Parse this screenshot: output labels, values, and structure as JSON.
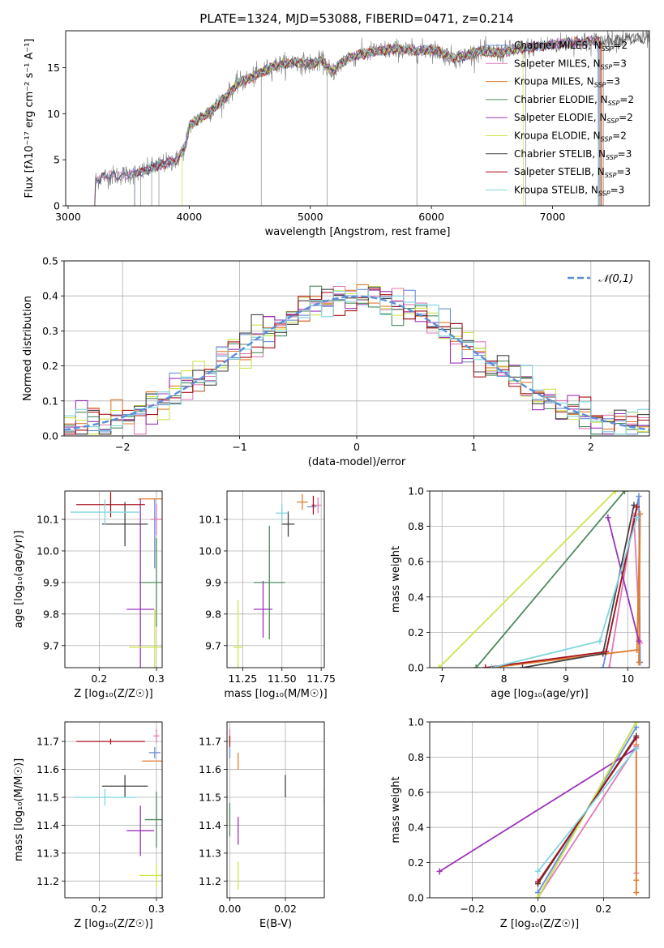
{
  "page_title": "PLATE=1324, MJD=53088, FIBERID=0471, z=0.214",
  "series_styles": [
    {
      "name": "Chabrier MILES",
      "nssp": "2",
      "color": "#6a8fd8"
    },
    {
      "name": "Salpeter MILES",
      "nssp": "3",
      "color": "#e07bb5"
    },
    {
      "name": "Kroupa MILES",
      "nssp": "3",
      "color": "#e07c2e"
    },
    {
      "name": "Chabrier ELODIE",
      "nssp": "2",
      "color": "#4f8b5e"
    },
    {
      "name": "Salpeter ELODIE",
      "nssp": "2",
      "color": "#9b34b8"
    },
    {
      "name": "Kroupa ELODIE",
      "nssp": "2",
      "color": "#cfe44b"
    },
    {
      "name": "Chabrier STELIB",
      "nssp": "3",
      "color": "#444444"
    },
    {
      "name": "Salpeter STELIB",
      "nssp": "3",
      "color": "#a8121c"
    },
    {
      "name": "Kroupa STELIB",
      "nssp": "3",
      "color": "#7fd6df"
    }
  ],
  "chart_data": [
    {
      "id": "spectrum",
      "type": "line",
      "xlabel": "wavelength [Angstrom, rest frame]",
      "ylabel": "Flux [fλ10⁻¹⁷ erg cm⁻² s⁻¹ A⁻¹]",
      "xlim": [
        2980,
        7800
      ],
      "ylim": [
        0,
        19
      ],
      "xticks": [
        3000,
        4000,
        5000,
        6000,
        7000
      ],
      "yticks": [
        0,
        5,
        10,
        15
      ],
      "legend": "upper right",
      "continuum": [
        [
          3220,
          0
        ],
        [
          3225,
          2.8
        ],
        [
          3300,
          3.2
        ],
        [
          3500,
          3.4
        ],
        [
          3600,
          3.6
        ],
        [
          3700,
          4.2
        ],
        [
          3800,
          4.6
        ],
        [
          3900,
          5.0
        ],
        [
          3970,
          6.5
        ],
        [
          4000,
          8.7
        ],
        [
          4100,
          9.6
        ],
        [
          4200,
          10.5
        ],
        [
          4300,
          11.8
        ],
        [
          4400,
          13.3
        ],
        [
          4500,
          13.8
        ],
        [
          4700,
          15.2
        ],
        [
          4860,
          15.6
        ],
        [
          5000,
          15.4
        ],
        [
          5100,
          15.7
        ],
        [
          5175,
          14.5
        ],
        [
          5300,
          16.0
        ],
        [
          5500,
          16.7
        ],
        [
          5700,
          17.0
        ],
        [
          5890,
          16.8
        ],
        [
          6000,
          17.0
        ],
        [
          6200,
          16.0
        ],
        [
          6400,
          16.8
        ],
        [
          6563,
          16.6
        ],
        [
          6700,
          17.0
        ],
        [
          6900,
          17.3
        ],
        [
          7100,
          17.7
        ],
        [
          7300,
          17.8
        ],
        [
          7500,
          18.0
        ],
        [
          7800,
          18.2
        ]
      ],
      "start_waves": [
        3220,
        3220,
        3550,
        3550,
        3550,
        3940,
        3220,
        3550,
        3550
      ],
      "end_waves": [
        7380,
        7380,
        7410,
        7390,
        7380,
        6760,
        7800,
        7400,
        7380
      ],
      "spikes": [
        [
          3600,
          0
        ],
        [
          3690,
          0
        ],
        [
          3750,
          0
        ],
        [
          4595,
          0
        ],
        [
          5140,
          0
        ],
        [
          5880,
          0
        ],
        [
          6780,
          0
        ],
        [
          7420,
          0
        ]
      ]
    },
    {
      "id": "residuals",
      "type": "histogram",
      "xlabel": "(data-model)/error",
      "ylabel": "Normed distribution",
      "xlim": [
        -2.5,
        2.5
      ],
      "ylim": [
        0,
        0.5
      ],
      "xticks": [
        -2,
        -1,
        0,
        1,
        2
      ],
      "yticks": [
        0.0,
        0.1,
        0.2,
        0.3,
        0.4,
        0.5
      ],
      "grid": true,
      "bin_width": 0.1,
      "reference_curve": {
        "label": "𝒩(0,1)",
        "mean": 0,
        "sigma": 1,
        "color": "#5a8fd8"
      },
      "legend": "upper right"
    },
    {
      "id": "age-vs-Z",
      "type": "scatter",
      "xlabel": "Z [log₁₀(Z/Z☉)]",
      "ylabel": "age  [log₁₀(age/yr)]",
      "xlim": [
        0.14,
        0.31
      ],
      "ylim": [
        9.63,
        10.19
      ],
      "xticks": [
        0.2,
        0.3
      ],
      "yticks": [
        9.7,
        9.8,
        9.9,
        10.0,
        10.1
      ],
      "points": [
        {
          "series": "Chabrier MILES",
          "x": 0.297,
          "y": 10.055,
          "xerr": 0.0,
          "yerr": 0.11
        },
        {
          "series": "Salpeter MILES",
          "x": 0.3,
          "y": 10.1,
          "xerr": 0.01,
          "yerr": 0.05
        },
        {
          "series": "Kroupa MILES",
          "x": 0.295,
          "y": 10.165,
          "xerr": 0.027,
          "yerr": 0.0
        },
        {
          "series": "Chabrier ELODIE",
          "x": 0.3,
          "y": 9.9,
          "xerr": 0.03,
          "yerr": 0.14
        },
        {
          "series": "Salpeter ELODIE",
          "x": 0.272,
          "y": 9.815,
          "xerr": 0.024,
          "yerr": 0.35
        },
        {
          "series": "Kroupa ELODIE",
          "x": 0.297,
          "y": 9.695,
          "xerr": 0.045,
          "yerr": 0.12
        },
        {
          "series": "Chabrier STELIB",
          "x": 0.245,
          "y": 10.085,
          "xerr": 0.04,
          "yerr": 0.07
        },
        {
          "series": "Salpeter STELIB",
          "x": 0.22,
          "y": 10.147,
          "xerr": 0.06,
          "yerr": 0.04
        },
        {
          "series": "Kroupa STELIB",
          "x": 0.21,
          "y": 10.123,
          "xerr": 0.06,
          "yerr": 0.04
        }
      ]
    },
    {
      "id": "age-vs-mass",
      "type": "scatter",
      "xlabel": "mass [log₁₀(M/M☉)]",
      "ylabel": "",
      "xlim": [
        11.15,
        11.77
      ],
      "ylim": [
        9.63,
        10.19
      ],
      "xticks": [
        11.25,
        11.5,
        11.75
      ],
      "yticks": [
        9.7,
        9.8,
        9.9,
        10.0,
        10.1
      ],
      "points": [
        {
          "series": "Chabrier MILES",
          "x": 11.69,
          "y": 10.14,
          "xerr": 0.03,
          "yerr": 0.0
        },
        {
          "series": "Salpeter MILES",
          "x": 11.73,
          "y": 10.145,
          "xerr": 0.02,
          "yerr": 0.025
        },
        {
          "series": "Kroupa MILES",
          "x": 11.63,
          "y": 10.155,
          "xerr": 0.035,
          "yerr": 0.025
        },
        {
          "series": "Chabrier ELODIE",
          "x": 11.42,
          "y": 9.9,
          "xerr": 0.1,
          "yerr": 0.18
        },
        {
          "series": "Salpeter ELODIE",
          "x": 11.38,
          "y": 9.815,
          "xerr": 0.06,
          "yerr": 0.09
        },
        {
          "series": "Kroupa ELODIE",
          "x": 11.22,
          "y": 9.695,
          "xerr": 0.03,
          "yerr": 0.15
        },
        {
          "series": "Chabrier STELIB",
          "x": 11.54,
          "y": 10.085,
          "xerr": 0.04,
          "yerr": 0.04
        },
        {
          "series": "Salpeter STELIB",
          "x": 11.7,
          "y": 10.145,
          "xerr": 0.01,
          "yerr": 0.03
        },
        {
          "series": "Kroupa STELIB",
          "x": 11.5,
          "y": 10.12,
          "xerr": 0.04,
          "yerr": 0.03
        }
      ]
    },
    {
      "id": "weight-vs-age",
      "type": "line",
      "xlabel": "age  [log₁₀(age/yr)]",
      "ylabel": "mass weight",
      "xlim": [
        6.8,
        10.35
      ],
      "ylim": [
        0,
        1.0
      ],
      "xticks": [
        7,
        8,
        9,
        10
      ],
      "yticks": [
        0.0,
        0.2,
        0.4,
        0.6,
        0.8,
        1.0
      ],
      "series": [
        {
          "series": "Chabrier MILES",
          "points": [
            [
              9.6,
              0.0
            ],
            [
              10.18,
              0.97
            ],
            [
              10.2,
              0.03
            ]
          ]
        },
        {
          "series": "Salpeter MILES",
          "points": [
            [
              9.7,
              0.0
            ],
            [
              10.1,
              0.86
            ],
            [
              10.2,
              0.14
            ]
          ]
        },
        {
          "series": "Kroupa MILES",
          "points": [
            [
              7.8,
              0.0
            ],
            [
              10.15,
              0.1
            ],
            [
              10.2,
              0.87
            ],
            [
              10.18,
              0.03
            ]
          ]
        },
        {
          "series": "Chabrier ELODIE",
          "points": [
            [
              7.55,
              0.0
            ],
            [
              9.95,
              1.0
            ]
          ]
        },
        {
          "series": "Salpeter ELODIE",
          "points": [
            [
              9.68,
              0.85
            ],
            [
              10.18,
              0.15
            ]
          ]
        },
        {
          "series": "Kroupa ELODIE",
          "points": [
            [
              6.95,
              0.0
            ],
            [
              9.8,
              1.0
            ]
          ]
        },
        {
          "series": "Chabrier STELIB",
          "points": [
            [
              8.3,
              0.0
            ],
            [
              9.6,
              0.08
            ],
            [
              10.1,
              0.92
            ]
          ]
        },
        {
          "series": "Salpeter STELIB",
          "points": [
            [
              7.7,
              0.0
            ],
            [
              9.65,
              0.09
            ],
            [
              10.15,
              0.91
            ]
          ]
        },
        {
          "series": "Kroupa STELIB",
          "points": [
            [
              7.8,
              0.0
            ],
            [
              9.55,
              0.15
            ],
            [
              10.15,
              0.85
            ]
          ]
        }
      ]
    },
    {
      "id": "mass-vs-Z",
      "type": "scatter",
      "xlabel": "Z [log₁₀(Z/Z☉)]",
      "ylabel": "mass [log₁₀(M/M☉)]",
      "xlim": [
        0.14,
        0.31
      ],
      "ylim": [
        11.14,
        11.77
      ],
      "xticks": [
        0.2,
        0.3
      ],
      "yticks": [
        11.2,
        11.3,
        11.4,
        11.5,
        11.6,
        11.7
      ],
      "points": [
        {
          "series": "Chabrier MILES",
          "x": 0.297,
          "y": 11.66,
          "xerr": 0.01,
          "yerr": 0.02
        },
        {
          "series": "Salpeter MILES",
          "x": 0.3,
          "y": 11.72,
          "xerr": 0.005,
          "yerr": 0.025
        },
        {
          "series": "Kroupa MILES",
          "x": 0.3,
          "y": 11.63,
          "xerr": 0.025,
          "yerr": 0.0
        },
        {
          "series": "Chabrier ELODIE",
          "x": 0.3,
          "y": 11.42,
          "xerr": 0.02,
          "yerr": 0.1
        },
        {
          "series": "Salpeter ELODIE",
          "x": 0.272,
          "y": 11.38,
          "xerr": 0.024,
          "yerr": 0.09
        },
        {
          "series": "Kroupa ELODIE",
          "x": 0.3,
          "y": 11.22,
          "xerr": 0.03,
          "yerr": 0.04
        },
        {
          "series": "Chabrier STELIB",
          "x": 0.245,
          "y": 11.54,
          "xerr": 0.04,
          "yerr": 0.04
        },
        {
          "series": "Salpeter STELIB",
          "x": 0.22,
          "y": 11.7,
          "xerr": 0.06,
          "yerr": 0.01
        },
        {
          "series": "Kroupa STELIB",
          "x": 0.21,
          "y": 11.5,
          "xerr": 0.055,
          "yerr": 0.03
        }
      ]
    },
    {
      "id": "mass-vs-EBV",
      "type": "scatter",
      "xlabel": "E(B-V)",
      "ylabel": "",
      "xlim": [
        -0.001,
        0.034
      ],
      "ylim": [
        11.14,
        11.77
      ],
      "xticks": [
        0.0,
        0.02
      ],
      "yticks": [
        11.2,
        11.3,
        11.4,
        11.5,
        11.6,
        11.7
      ],
      "points": [
        {
          "series": "Chabrier MILES",
          "x": 0.0,
          "y": 11.66,
          "xerr": 0.0,
          "yerr": 0.02
        },
        {
          "series": "Salpeter MILES",
          "x": 0.0,
          "y": 11.72,
          "xerr": 0.0,
          "yerr": 0.025
        },
        {
          "series": "Kroupa MILES",
          "x": 0.003,
          "y": 11.63,
          "xerr": 0.0,
          "yerr": 0.03
        },
        {
          "series": "Chabrier ELODIE",
          "x": 0.0,
          "y": 11.42,
          "xerr": 0.0,
          "yerr": 0.06
        },
        {
          "series": "Salpeter ELODIE",
          "x": 0.003,
          "y": 11.38,
          "xerr": 0.0,
          "yerr": 0.05
        },
        {
          "series": "Kroupa ELODIE",
          "x": 0.003,
          "y": 11.22,
          "xerr": 0.0,
          "yerr": 0.05
        },
        {
          "series": "Chabrier STELIB",
          "x": 0.02,
          "y": 11.54,
          "xerr": 0.0,
          "yerr": 0.04
        },
        {
          "series": "Salpeter STELIB",
          "x": 0.0,
          "y": 11.7,
          "xerr": 0.0,
          "yerr": 0.02
        },
        {
          "series": "Kroupa STELIB",
          "x": 0.034,
          "y": 11.5,
          "xerr": 0.0,
          "yerr": 0.03
        }
      ]
    },
    {
      "id": "weight-vs-Z",
      "type": "line",
      "xlabel": "Z [log₁₀(Z/Z☉)]",
      "ylabel": "mass weight",
      "xlim": [
        -0.33,
        0.34
      ],
      "ylim": [
        0,
        1.0
      ],
      "xticks": [
        -0.2,
        0.0,
        0.2
      ],
      "yticks": [
        0.0,
        0.2,
        0.4,
        0.6,
        0.8,
        1.0
      ],
      "series": [
        {
          "series": "Chabrier MILES",
          "points": [
            [
              0.0,
              0.03
            ],
            [
              0.3,
              0.97
            ]
          ]
        },
        {
          "series": "Salpeter MILES",
          "points": [
            [
              0.0,
              0.0
            ],
            [
              0.3,
              0.86
            ],
            [
              0.3,
              0.14
            ]
          ]
        },
        {
          "series": "Kroupa MILES",
          "points": [
            [
              0.3,
              0.87
            ],
            [
              0.3,
              0.1
            ],
            [
              0.3,
              0.03
            ]
          ]
        },
        {
          "series": "Chabrier ELODIE",
          "points": [
            [
              0.0,
              0.0
            ],
            [
              0.3,
              1.0
            ]
          ]
        },
        {
          "series": "Salpeter ELODIE",
          "points": [
            [
              -0.3,
              0.15
            ],
            [
              0.3,
              0.85
            ]
          ]
        },
        {
          "series": "Kroupa ELODIE",
          "points": [
            [
              0.0,
              0.0
            ],
            [
              0.3,
              1.0
            ]
          ]
        },
        {
          "series": "Chabrier STELIB",
          "points": [
            [
              0.0,
              0.08
            ],
            [
              0.3,
              0.92
            ]
          ]
        },
        {
          "series": "Salpeter STELIB",
          "points": [
            [
              0.0,
              0.09
            ],
            [
              0.3,
              0.91
            ]
          ]
        },
        {
          "series": "Kroupa STELIB",
          "points": [
            [
              0.0,
              0.15
            ],
            [
              0.3,
              0.85
            ]
          ]
        }
      ]
    }
  ]
}
